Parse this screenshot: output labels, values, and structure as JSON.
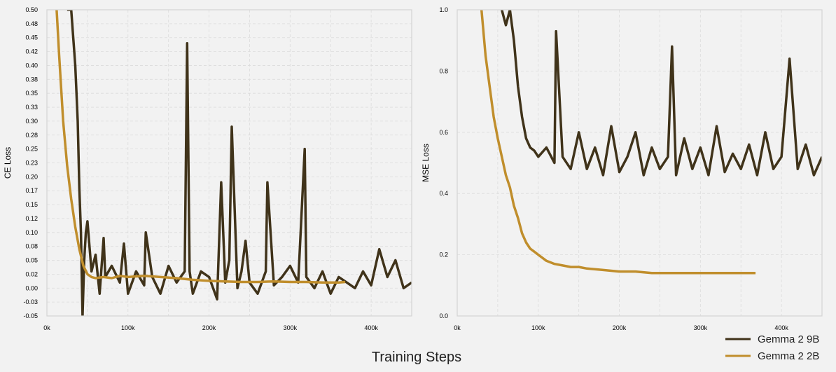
{
  "figure": {
    "xlabel": "Training Steps",
    "colors": {
      "gemma9b": "#40331a",
      "gemma2b": "#c08e2c",
      "background": "#f2f2f2"
    }
  },
  "legend": {
    "placement": "bottom-right",
    "entries": [
      {
        "label": "Gemma 2 9B",
        "color": "#40331a"
      },
      {
        "label": "Gemma 2 2B",
        "color": "#c08e2c"
      }
    ]
  },
  "chart_data": [
    {
      "type": "line",
      "ylabel": "CE Loss",
      "xlim": [
        0,
        450000
      ],
      "ylim": [
        -0.05,
        0.5
      ],
      "grid": true,
      "xticks": [
        {
          "v": 0,
          "label": "0k"
        },
        {
          "v": 100000,
          "label": "100k"
        },
        {
          "v": 200000,
          "label": "200k"
        },
        {
          "v": 300000,
          "label": "300k"
        },
        {
          "v": 400000,
          "label": "400k"
        }
      ],
      "yticks": [
        {
          "v": -0.05,
          "label": "-0.05"
        },
        {
          "v": -0.025,
          "label": "-0.03"
        },
        {
          "v": 0.0,
          "label": "0.00"
        },
        {
          "v": 0.025,
          "label": "0.02"
        },
        {
          "v": 0.05,
          "label": "0.05"
        },
        {
          "v": 0.075,
          "label": "0.08"
        },
        {
          "v": 0.1,
          "label": "0.10"
        },
        {
          "v": 0.125,
          "label": "0.12"
        },
        {
          "v": 0.15,
          "label": "0.15"
        },
        {
          "v": 0.175,
          "label": "0.17"
        },
        {
          "v": 0.2,
          "label": "0.20"
        },
        {
          "v": 0.225,
          "label": "0.23"
        },
        {
          "v": 0.25,
          "label": "0.25"
        },
        {
          "v": 0.275,
          "label": "0.28"
        },
        {
          "v": 0.3,
          "label": "0.30"
        },
        {
          "v": 0.325,
          "label": "0.33"
        },
        {
          "v": 0.35,
          "label": "0.35"
        },
        {
          "v": 0.375,
          "label": "0.38"
        },
        {
          "v": 0.4,
          "label": "0.40"
        },
        {
          "v": 0.425,
          "label": "0.42"
        },
        {
          "v": 0.45,
          "label": "0.45"
        },
        {
          "v": 0.475,
          "label": "0.48"
        },
        {
          "v": 0.5,
          "label": "0.50"
        }
      ],
      "series": [
        {
          "name": "Gemma 2 9B",
          "color": "#40331a",
          "x": [
            25000,
            30000,
            35000,
            38000,
            40000,
            42000,
            44000,
            46000,
            48000,
            50000,
            55000,
            60000,
            65000,
            70000,
            72000,
            80000,
            90000,
            95000,
            100000,
            110000,
            120000,
            122000,
            130000,
            140000,
            150000,
            160000,
            170000,
            173000,
            176000,
            180000,
            190000,
            200000,
            210000,
            215000,
            220000,
            225000,
            228000,
            235000,
            240000,
            245000,
            250000,
            260000,
            270000,
            272000,
            280000,
            290000,
            300000,
            310000,
            318000,
            320000,
            330000,
            340000,
            350000,
            360000,
            370000,
            380000,
            390000,
            400000,
            410000,
            420000,
            430000,
            440000,
            450000
          ],
          "y": [
            0.5,
            0.5,
            0.4,
            0.3,
            0.18,
            0.1,
            -0.05,
            0.05,
            0.1,
            0.12,
            0.03,
            0.06,
            -0.01,
            0.09,
            0.02,
            0.04,
            0.01,
            0.08,
            -0.01,
            0.03,
            0.005,
            0.1,
            0.02,
            -0.01,
            0.04,
            0.01,
            0.03,
            0.44,
            0.03,
            -0.01,
            0.03,
            0.02,
            -0.02,
            0.19,
            0.01,
            0.05,
            0.29,
            0.0,
            0.03,
            0.085,
            0.01,
            -0.01,
            0.03,
            0.19,
            0.005,
            0.02,
            0.04,
            0.01,
            0.25,
            0.02,
            0.0,
            0.03,
            -0.01,
            0.02,
            0.01,
            0.0,
            0.03,
            0.005,
            0.07,
            0.02,
            0.05,
            0.0,
            0.01
          ]
        },
        {
          "name": "Gemma 2 2B",
          "color": "#c08e2c",
          "x": [
            12000,
            15000,
            20000,
            25000,
            30000,
            35000,
            40000,
            45000,
            50000,
            55000,
            60000,
            70000,
            80000,
            90000,
            100000,
            120000,
            140000,
            160000,
            180000,
            200000,
            220000,
            240000,
            260000,
            280000,
            300000,
            320000,
            340000,
            360000,
            368000
          ],
          "y": [
            0.5,
            0.42,
            0.3,
            0.22,
            0.16,
            0.11,
            0.07,
            0.04,
            0.025,
            0.02,
            0.018,
            0.02,
            0.018,
            0.022,
            0.02,
            0.022,
            0.02,
            0.018,
            0.015,
            0.013,
            0.012,
            0.011,
            0.011,
            0.012,
            0.011,
            0.011,
            0.01,
            0.01,
            0.011
          ]
        }
      ]
    },
    {
      "type": "line",
      "ylabel": "MSE Loss",
      "xlim": [
        0,
        450000
      ],
      "ylim": [
        0.0,
        1.0
      ],
      "grid": true,
      "xticks": [
        {
          "v": 0,
          "label": "0k"
        },
        {
          "v": 100000,
          "label": "100k"
        },
        {
          "v": 200000,
          "label": "200k"
        },
        {
          "v": 300000,
          "label": "300k"
        },
        {
          "v": 400000,
          "label": "400k"
        }
      ],
      "yticks": [
        {
          "v": 0.0,
          "label": "0.0"
        },
        {
          "v": 0.2,
          "label": "0.2"
        },
        {
          "v": 0.4,
          "label": "0.4"
        },
        {
          "v": 0.6,
          "label": "0.6"
        },
        {
          "v": 0.8,
          "label": "0.8"
        },
        {
          "v": 1.0,
          "label": "1.0"
        }
      ],
      "series": [
        {
          "name": "Gemma 2 9B",
          "color": "#40331a",
          "x": [
            55000,
            60000,
            65000,
            70000,
            75000,
            80000,
            85000,
            90000,
            95000,
            100000,
            110000,
            120000,
            122000,
            130000,
            140000,
            150000,
            160000,
            170000,
            180000,
            190000,
            200000,
            210000,
            220000,
            230000,
            240000,
            250000,
            260000,
            265000,
            270000,
            280000,
            290000,
            300000,
            310000,
            320000,
            330000,
            340000,
            350000,
            360000,
            370000,
            380000,
            390000,
            400000,
            410000,
            420000,
            430000,
            440000,
            450000
          ],
          "y": [
            1.0,
            0.95,
            1.0,
            0.9,
            0.75,
            0.65,
            0.58,
            0.55,
            0.54,
            0.52,
            0.55,
            0.5,
            0.93,
            0.52,
            0.48,
            0.6,
            0.48,
            0.55,
            0.46,
            0.62,
            0.47,
            0.52,
            0.6,
            0.46,
            0.55,
            0.48,
            0.52,
            0.88,
            0.46,
            0.58,
            0.48,
            0.55,
            0.46,
            0.62,
            0.47,
            0.53,
            0.48,
            0.56,
            0.46,
            0.6,
            0.48,
            0.52,
            0.84,
            0.48,
            0.56,
            0.46,
            0.52
          ]
        },
        {
          "name": "Gemma 2 2B",
          "color": "#c08e2c",
          "x": [
            30000,
            35000,
            40000,
            45000,
            50000,
            55000,
            60000,
            65000,
            70000,
            75000,
            80000,
            85000,
            90000,
            95000,
            100000,
            110000,
            120000,
            130000,
            140000,
            150000,
            160000,
            180000,
            200000,
            220000,
            240000,
            260000,
            280000,
            300000,
            320000,
            340000,
            360000,
            368000
          ],
          "y": [
            1.0,
            0.85,
            0.75,
            0.65,
            0.58,
            0.52,
            0.46,
            0.42,
            0.36,
            0.32,
            0.27,
            0.24,
            0.22,
            0.21,
            0.2,
            0.18,
            0.17,
            0.165,
            0.16,
            0.16,
            0.155,
            0.15,
            0.145,
            0.145,
            0.14,
            0.14,
            0.14,
            0.14,
            0.14,
            0.14,
            0.14,
            0.14
          ]
        }
      ]
    }
  ]
}
